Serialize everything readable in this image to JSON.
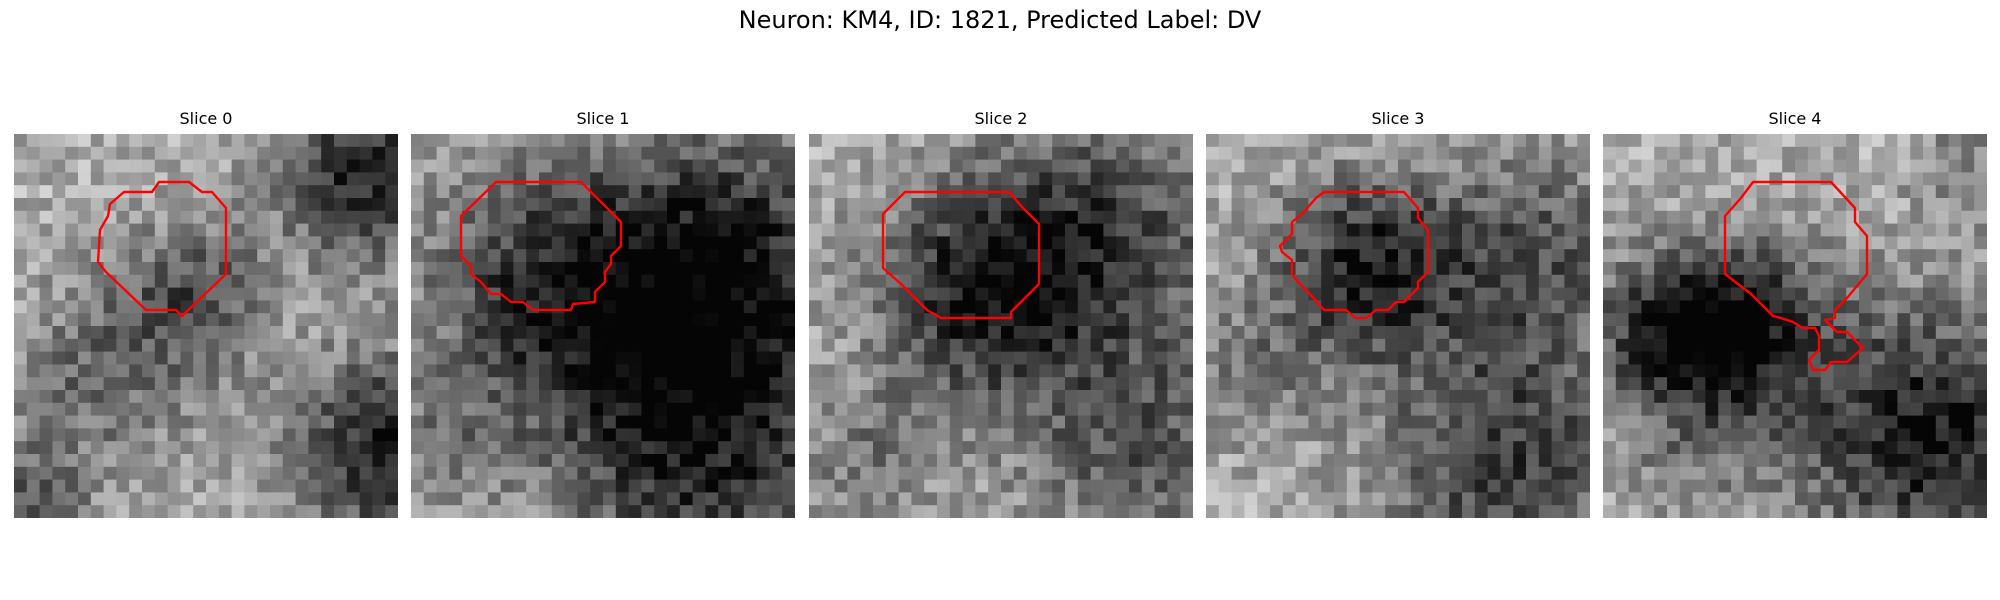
{
  "figure": {
    "title": "Neuron: KM4, ID: 1821, Predicted Label: DV"
  },
  "colors": {
    "contour": "#ff0000"
  },
  "panels": [
    {
      "title": "Slice 0"
    },
    {
      "title": "Slice 1"
    },
    {
      "title": "Slice 2"
    },
    {
      "title": "Slice 3"
    },
    {
      "title": "Slice 4"
    }
  ]
}
